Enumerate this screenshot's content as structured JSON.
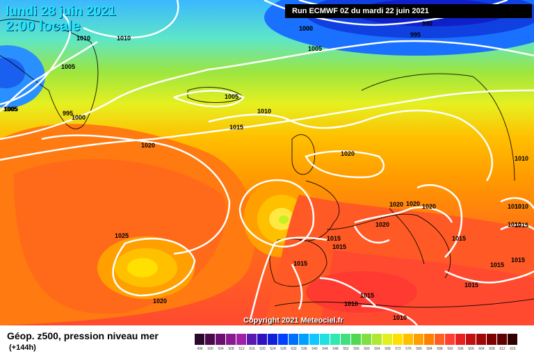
{
  "title": {
    "date_line": "lundi 28 juin 2021",
    "time_line": "2:00 locale"
  },
  "run_banner": "Run ECMWF 0Z du mardi 22 juin 2021",
  "copyright": "Copyright 2021 Meteociel.fr",
  "legend": {
    "title": "Géop. z500, pression niveau mer",
    "subtitle": "(+144h)",
    "scale_values": [
      "496",
      "500",
      "504",
      "508",
      "512",
      "516",
      "520",
      "524",
      "528",
      "532",
      "536",
      "540",
      "544",
      "548",
      "552",
      "556",
      "560",
      "564",
      "568",
      "572",
      "576",
      "580",
      "584",
      "588",
      "592",
      "596",
      "600",
      "604",
      "608",
      "612",
      "616"
    ],
    "scale_colors": [
      "#2a0a2a",
      "#4a0a4a",
      "#6a1070",
      "#8a1a90",
      "#a020a8",
      "#5a1ab0",
      "#3010c0",
      "#1020d8",
      "#0040ff",
      "#0070ff",
      "#00a0ff",
      "#10c8ff",
      "#20e0e0",
      "#30e8b0",
      "#40e080",
      "#50d850",
      "#80e040",
      "#b0e830",
      "#e0f020",
      "#ffe000",
      "#ffc000",
      "#ffa000",
      "#ff8000",
      "#ff6020",
      "#ff4030",
      "#e82020",
      "#c01010",
      "#a00808",
      "#800000",
      "#600000",
      "#300000"
    ]
  },
  "isobar_labels": [
    "1010",
    "1010",
    "1005",
    "1005",
    "1000",
    "995",
    "1000",
    "1005",
    "990",
    "995",
    "1000",
    "1005",
    "1005",
    "1010",
    "1015",
    "1020",
    "1020",
    "1020",
    "1020",
    "1020",
    "1020",
    "1025",
    "1020",
    "1015",
    "1015",
    "1015",
    "1015",
    "1015",
    "1015",
    "1010",
    "1010",
    "1010",
    "1015",
    "1015",
    "1010",
    "1015",
    "1010",
    "1010"
  ]
}
